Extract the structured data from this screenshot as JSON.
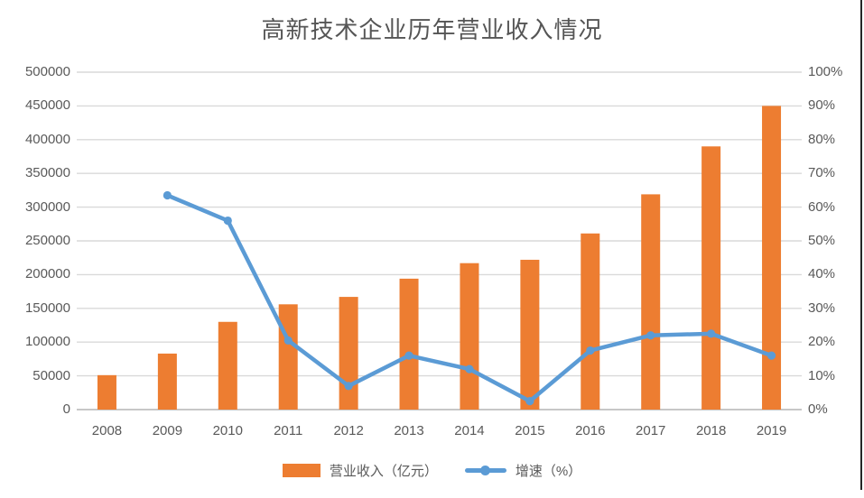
{
  "title": "高新技术企业历年营业收入情况",
  "legend": {
    "bar_label": "营业收入（亿元）",
    "line_label": "增速（%）"
  },
  "colors": {
    "bar": "#ED7D31",
    "line": "#5B9BD5",
    "gridline": "#D9D9D9",
    "axis_line": "#BFBFBF",
    "tick_text": "#595959",
    "title_text": "#555555",
    "right_border": "#262626",
    "background": "#FFFFFF"
  },
  "chart_data": {
    "type": "bar",
    "subtype": "combo-bar-line-dual-axis",
    "title": "高新技术企业历年营业收入情况",
    "categories": [
      "2008",
      "2009",
      "2010",
      "2011",
      "2012",
      "2013",
      "2014",
      "2015",
      "2016",
      "2017",
      "2018",
      "2019"
    ],
    "series": [
      {
        "name": "营业收入（亿元）",
        "type": "bar",
        "axis": "left",
        "color": "#ED7D31",
        "values": [
          51000,
          83000,
          130000,
          156000,
          167000,
          194000,
          217000,
          222000,
          261000,
          319000,
          390000,
          450000
        ]
      },
      {
        "name": "增速（%）",
        "type": "line",
        "axis": "right",
        "color": "#5B9BD5",
        "values": [
          null,
          63.5,
          56,
          20.5,
          7,
          16,
          12,
          2.5,
          17.5,
          22,
          22.5,
          16
        ]
      }
    ],
    "left_axis": {
      "min": 0,
      "max": 500000,
      "step": 50000,
      "tick_labels": [
        "0",
        "50000",
        "100000",
        "150000",
        "200000",
        "250000",
        "300000",
        "350000",
        "400000",
        "450000",
        "500000"
      ]
    },
    "right_axis": {
      "min": 0,
      "max": 100,
      "step": 10,
      "tick_labels": [
        "0%",
        "10%",
        "20%",
        "30%",
        "40%",
        "50%",
        "60%",
        "70%",
        "80%",
        "90%",
        "100%"
      ]
    },
    "grid": true,
    "legend_position": "bottom",
    "xlabel": "",
    "ylabel": ""
  }
}
